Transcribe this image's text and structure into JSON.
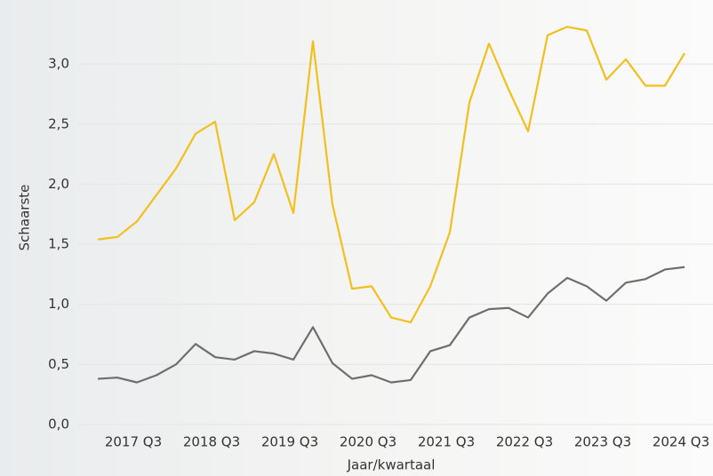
{
  "chart_data": {
    "type": "line",
    "x_label": "Jaar/kwartaal",
    "y_label": "Schaarste",
    "categories": [
      null,
      null,
      "2017 Q3",
      null,
      null,
      null,
      "2018 Q3",
      null,
      null,
      null,
      "2019 Q3",
      null,
      null,
      null,
      "2020 Q3",
      null,
      null,
      null,
      "2021 Q3",
      null,
      null,
      null,
      "2022 Q3",
      null,
      null,
      null,
      "2023 Q3",
      null,
      null,
      null,
      "2024 Q3"
    ],
    "series": [
      {
        "color": "#f2c01e",
        "values": [
          1.54,
          1.56,
          1.69,
          1.91,
          2.13,
          2.42,
          2.52,
          1.7,
          1.85,
          2.25,
          1.76,
          3.19,
          1.83,
          1.13,
          1.15,
          0.89,
          0.85,
          1.15,
          1.6,
          2.68,
          3.17,
          2.79,
          2.44,
          3.24,
          3.31,
          3.28,
          2.87,
          3.04,
          2.82,
          2.82,
          3.09
        ]
      },
      {
        "color": "#6e6e6e",
        "values": [
          0.38,
          0.39,
          0.35,
          0.41,
          0.5,
          0.67,
          0.56,
          0.54,
          0.61,
          0.59,
          0.54,
          0.81,
          0.51,
          0.38,
          0.41,
          0.35,
          0.37,
          0.61,
          0.66,
          0.89,
          0.96,
          0.97,
          0.89,
          1.09,
          1.22,
          1.15,
          1.03,
          1.18,
          1.21,
          1.29,
          1.31
        ]
      }
    ],
    "ylim": [
      -0.1,
      3.4
    ],
    "yticks": [
      {
        "value": 0,
        "label": "0,0"
      },
      {
        "value": 0.5,
        "label": "0,5"
      },
      {
        "value": 1,
        "label": "1,0"
      },
      {
        "value": 1.5,
        "label": "1,5"
      },
      {
        "value": 2,
        "label": "2,0"
      },
      {
        "value": 2.5,
        "label": "2,5"
      },
      {
        "value": 3,
        "label": "3,0"
      }
    ],
    "grid": true
  }
}
